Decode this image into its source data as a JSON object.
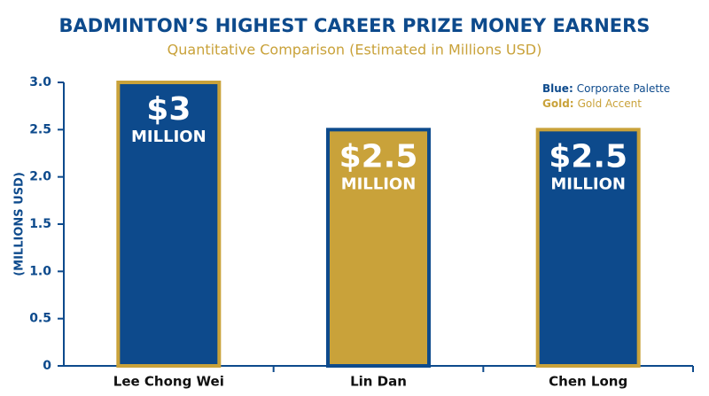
{
  "chart_data": {
    "type": "bar",
    "title": "BADMINTON’S HIGHEST CAREER PRIZE MONEY EARNERS",
    "subtitle": "Quantitative Comparison (Estimated in Millions USD)",
    "ylabel": "(MILLIONS USD)",
    "categories": [
      "Lee Chong Wei",
      "Lin Dan",
      "Chen Long"
    ],
    "values": [
      3,
      2.5,
      2.5
    ],
    "value_labels": [
      "$3 MILLION",
      "$2.5 MILLION",
      "$2.5 MILLION"
    ],
    "colors": [
      "#0d4a8c",
      "#c9a23a",
      "#0d4a8c"
    ],
    "edgecolors": [
      "#c9a23a",
      "#0d4a8c",
      "#c9a23a"
    ],
    "ylim": [
      0,
      3
    ],
    "yticks": [
      0,
      0.5,
      {
        "value": 1,
        "label": "1.0"
      },
      1.5,
      {
        "value": 2,
        "label": "2.0"
      },
      2.5,
      {
        "value": 3,
        "label": "3.0"
      }
    ],
    "legend": [
      {
        "key": "Blue:",
        "text": "Corporate Palette"
      },
      {
        "key": "Gold:",
        "text": "Gold Accent"
      }
    ],
    "grid": false
  }
}
